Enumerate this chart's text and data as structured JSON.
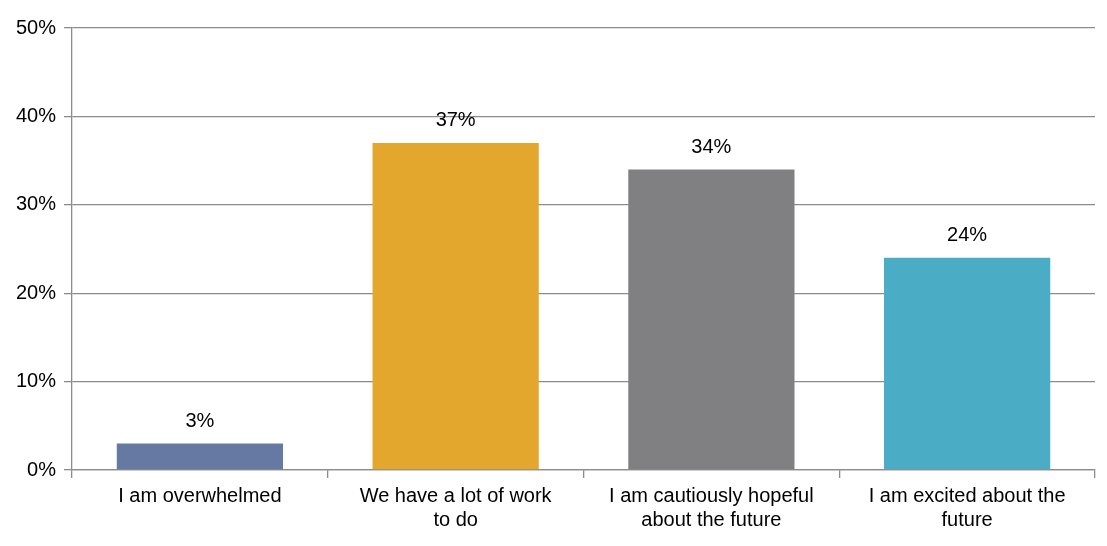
{
  "chart_data": {
    "type": "bar",
    "categories": [
      "I am overwhelmed",
      "We have a lot of work to do",
      "I am cautiously hopeful about the future",
      "I am excited about the future"
    ],
    "values": [
      3,
      37,
      34,
      24
    ],
    "colors": [
      "#6579a3",
      "#e3a72d",
      "#808083",
      "#4badc5"
    ],
    "ylim": [
      0,
      50
    ],
    "yticks": [
      {
        "value": 0,
        "label": "0%"
      },
      {
        "value": 10,
        "label": "10%"
      },
      {
        "value": 20,
        "label": "20%"
      },
      {
        "value": 30,
        "label": "30%"
      },
      {
        "value": 40,
        "label": "40%"
      },
      {
        "value": 50,
        "label": "50%"
      }
    ],
    "value_labels": [
      "3%",
      "37%",
      "34%",
      "24%"
    ],
    "grid": "y",
    "legend": false
  }
}
